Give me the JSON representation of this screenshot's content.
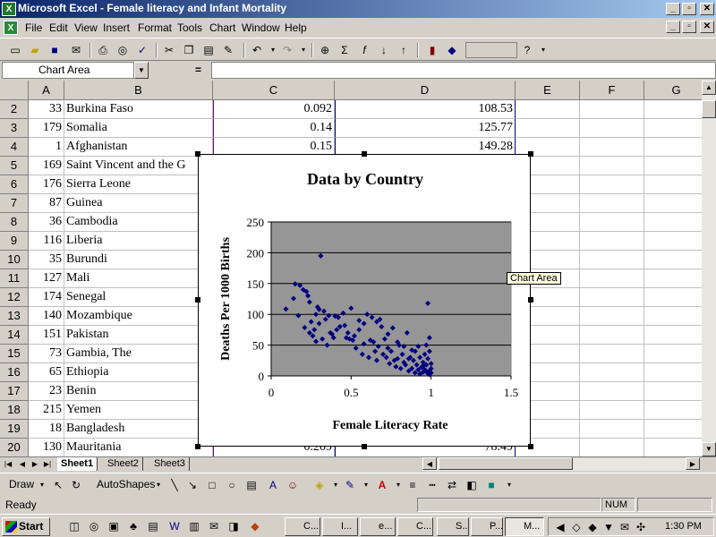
{
  "titlebar": {
    "title": "Microsoft Excel - Female literacy and Infant Mortality",
    "doc_icon": "X"
  },
  "menubar": {
    "items": [
      "File",
      "Edit",
      "View",
      "Insert",
      "Format",
      "Tools",
      "Chart",
      "Window",
      "Help"
    ]
  },
  "namebox": {
    "value": "Chart Area",
    "equals": "="
  },
  "columns": [
    "A",
    "B",
    "C",
    "D",
    "E",
    "F",
    "G"
  ],
  "rows": [
    {
      "n": "2",
      "a": "33",
      "b": "Burkina Faso",
      "c": "0.092",
      "d": "108.53"
    },
    {
      "n": "3",
      "a": "179",
      "b": "Somalia",
      "c": "0.14",
      "d": "125.77"
    },
    {
      "n": "4",
      "a": "1",
      "b": "Afghanistan",
      "c": "0.15",
      "d": "149.28"
    },
    {
      "n": "5",
      "a": "169",
      "b": "Saint Vincent and the G",
      "c": "",
      "d": ""
    },
    {
      "n": "6",
      "a": "176",
      "b": "Sierra Leone",
      "c": "",
      "d": ""
    },
    {
      "n": "7",
      "a": "87",
      "b": "Guinea",
      "c": "",
      "d": ""
    },
    {
      "n": "8",
      "a": "36",
      "b": "Cambodia",
      "c": "",
      "d": ""
    },
    {
      "n": "9",
      "a": "116",
      "b": "Liberia",
      "c": "",
      "d": ""
    },
    {
      "n": "10",
      "a": "35",
      "b": "Burundi",
      "c": "",
      "d": ""
    },
    {
      "n": "11",
      "a": "127",
      "b": "Mali",
      "c": "",
      "d": ""
    },
    {
      "n": "12",
      "a": "174",
      "b": "Senegal",
      "c": "",
      "d": ""
    },
    {
      "n": "13",
      "a": "140",
      "b": "Mozambique",
      "c": "",
      "d": ""
    },
    {
      "n": "14",
      "a": "151",
      "b": "Pakistan",
      "c": "",
      "d": ""
    },
    {
      "n": "15",
      "a": "73",
      "b": "Gambia, The",
      "c": "",
      "d": ""
    },
    {
      "n": "16",
      "a": "65",
      "b": "Ethiopia",
      "c": "",
      "d": ""
    },
    {
      "n": "17",
      "a": "23",
      "b": "Benin",
      "c": "",
      "d": ""
    },
    {
      "n": "18",
      "a": "215",
      "b": "Yemen",
      "c": "",
      "d": ""
    },
    {
      "n": "19",
      "a": "18",
      "b": "Bangladesh",
      "c": "",
      "d": ""
    },
    {
      "n": "20",
      "a": "130",
      "b": "Mauritania",
      "c": "0.209",
      "d": "78.49"
    }
  ],
  "sheets": [
    "Sheet1",
    "Sheet2",
    "Sheet3"
  ],
  "drawbar": {
    "draw_label": "Draw",
    "autoshapes_label": "AutoShapes"
  },
  "status": {
    "ready": "Ready",
    "num": "NUM"
  },
  "taskbar": {
    "start_label": "Start",
    "buttons": [
      "C...",
      "I...",
      "e...",
      "C...",
      "S...",
      "P...",
      "M..."
    ],
    "clock": "1:30 PM"
  },
  "tooltip": "Chart Area",
  "colors": {
    "marker": "#000080",
    "plot_bg": "#969696",
    "titlebar": "#0a246a"
  },
  "chart_data": {
    "type": "scatter",
    "title": "Data by Country",
    "xlabel": "Female Literacy Rate",
    "ylabel": "Deaths Per 1000 Births",
    "xlim": [
      0,
      1.5
    ],
    "ylim": [
      0,
      250
    ],
    "xticks": [
      "0",
      "0.5",
      "1",
      "1.5"
    ],
    "yticks": [
      "0",
      "50",
      "100",
      "150",
      "200",
      "250"
    ],
    "grid": "horizontal",
    "legend": "none",
    "points": [
      [
        0.092,
        108.53
      ],
      [
        0.14,
        125.77
      ],
      [
        0.15,
        149.28
      ],
      [
        0.18,
        147
      ],
      [
        0.2,
        140
      ],
      [
        0.17,
        98
      ],
      [
        0.209,
        78.49
      ],
      [
        0.22,
        137
      ],
      [
        0.23,
        130
      ],
      [
        0.24,
        120
      ],
      [
        0.24,
        70
      ],
      [
        0.25,
        88
      ],
      [
        0.26,
        65
      ],
      [
        0.27,
        75
      ],
      [
        0.28,
        100
      ],
      [
        0.29,
        112
      ],
      [
        0.3,
        85
      ],
      [
        0.31,
        195
      ],
      [
        0.32,
        60
      ],
      [
        0.33,
        105
      ],
      [
        0.34,
        92
      ],
      [
        0.35,
        50
      ],
      [
        0.37,
        70
      ],
      [
        0.38,
        68
      ],
      [
        0.39,
        62
      ],
      [
        0.4,
        97
      ],
      [
        0.42,
        95
      ],
      [
        0.43,
        80
      ],
      [
        0.45,
        102
      ],
      [
        0.46,
        82
      ],
      [
        0.48,
        70
      ],
      [
        0.49,
        60
      ],
      [
        0.5,
        110
      ],
      [
        0.51,
        58
      ],
      [
        0.52,
        65
      ],
      [
        0.53,
        45
      ],
      [
        0.55,
        90
      ],
      [
        0.55,
        75
      ],
      [
        0.57,
        35
      ],
      [
        0.58,
        52
      ],
      [
        0.6,
        100
      ],
      [
        0.61,
        30
      ],
      [
        0.62,
        58
      ],
      [
        0.63,
        95
      ],
      [
        0.64,
        55
      ],
      [
        0.65,
        40
      ],
      [
        0.66,
        25
      ],
      [
        0.67,
        48
      ],
      [
        0.68,
        92
      ],
      [
        0.69,
        80
      ],
      [
        0.7,
        35
      ],
      [
        0.71,
        60
      ],
      [
        0.72,
        30
      ],
      [
        0.73,
        45
      ],
      [
        0.74,
        20
      ],
      [
        0.75,
        40
      ],
      [
        0.76,
        78
      ],
      [
        0.77,
        25
      ],
      [
        0.78,
        15
      ],
      [
        0.79,
        28
      ],
      [
        0.8,
        50
      ],
      [
        0.81,
        12
      ],
      [
        0.82,
        35
      ],
      [
        0.83,
        22
      ],
      [
        0.84,
        18
      ],
      [
        0.85,
        70
      ],
      [
        0.86,
        8
      ],
      [
        0.87,
        30
      ],
      [
        0.88,
        12
      ],
      [
        0.89,
        25
      ],
      [
        0.9,
        40
      ],
      [
        0.9,
        5
      ],
      [
        0.91,
        18
      ],
      [
        0.92,
        10
      ],
      [
        0.93,
        30
      ],
      [
        0.93,
        3
      ],
      [
        0.94,
        14
      ],
      [
        0.95,
        22
      ],
      [
        0.95,
        6
      ],
      [
        0.96,
        35
      ],
      [
        0.96,
        10
      ],
      [
        0.97,
        50
      ],
      [
        0.97,
        18
      ],
      [
        0.98,
        4
      ],
      [
        0.98,
        28
      ],
      [
        0.98,
        118
      ],
      [
        0.99,
        8
      ],
      [
        0.99,
        62
      ],
      [
        0.99,
        40
      ],
      [
        1.0,
        12
      ],
      [
        1.0,
        5
      ],
      [
        0.92,
        48
      ],
      [
        0.88,
        42
      ],
      [
        0.86,
        28
      ],
      [
        0.83,
        48
      ],
      [
        0.79,
        55
      ],
      [
        0.73,
        68
      ],
      [
        0.66,
        88
      ],
      [
        0.58,
        85
      ],
      [
        0.47,
        62
      ],
      [
        0.41,
        75
      ],
      [
        0.36,
        98
      ],
      [
        0.3,
        108
      ],
      [
        0.28,
        56
      ],
      [
        0.95,
        16
      ],
      [
        0.97,
        8
      ],
      [
        1.0,
        20
      ],
      [
        0.99,
        2
      ]
    ]
  }
}
